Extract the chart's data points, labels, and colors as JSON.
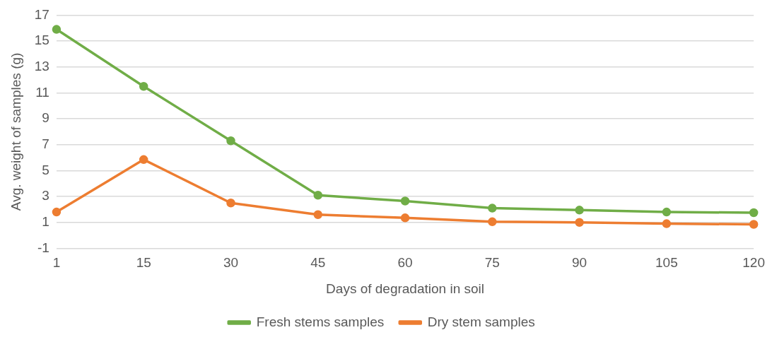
{
  "chart_data": {
    "type": "line",
    "xlabel": "Days of degradation in soil",
    "ylabel": "Avg. weight of samples (g)",
    "categories": [
      "1",
      "15",
      "30",
      "45",
      "60",
      "75",
      "90",
      "105",
      "120"
    ],
    "series": [
      {
        "name": "Fresh stems samples",
        "color": "#70ad47",
        "values": [
          15.9,
          11.5,
          7.3,
          3.1,
          2.65,
          2.1,
          1.95,
          1.8,
          1.75
        ]
      },
      {
        "name": "Dry stem samples",
        "color": "#ed7d31",
        "values": [
          1.8,
          5.85,
          2.5,
          1.6,
          1.35,
          1.05,
          1.0,
          0.9,
          0.85
        ]
      }
    ],
    "ylim": [
      -1,
      17
    ],
    "yticks": [
      -1,
      1,
      3,
      5,
      7,
      9,
      11,
      13,
      15,
      17
    ],
    "grid": "y",
    "legend": "bottom",
    "marker": "circle",
    "line_style": "solid"
  }
}
